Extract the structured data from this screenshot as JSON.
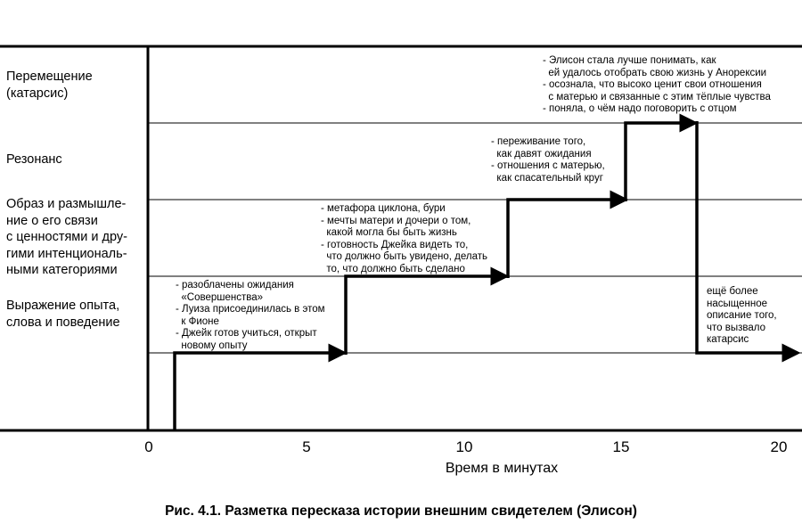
{
  "levels": [
    "Перемещение\n(катарсис)",
    "Резонанс",
    "Образ и размышле-\nние о его связи\nс ценностями и дру-\nгими интенциональ-\nными категориями",
    "Выражение опыта,\nслова и поведение"
  ],
  "notes": [
    "- разоблачены ожидания\n  «Совершенства»\n- Луиза присоединилась в этом\n  к Фионе\n- Джейк готов учиться, открыт\n  новому опыту",
    "- метафора циклона, бури\n- мечты матери и дочери о том,\n  какой могла бы быть жизнь\n- готовность Джейка видеть то,\n  что должно быть увидено, делать\n  то, что должно быть сделано",
    "- переживание того,\n  как давят ожидания\n- отношения с матерью,\n  как спасательный круг",
    "- Элисон стала лучше понимать, как\n  ей удалось отобрать свою жизнь у Анорексии\n- осознала, что высоко ценит свои отношения\n  с матерью и связанные с этим тёплые чувства\n- поняла, о чём надо поговорить с отцом",
    "ещё более\nнасыщенное\nописание того,\nчто вызвало\nкатарсис"
  ],
  "x_ticks": [
    "0",
    "5",
    "10",
    "15",
    "20"
  ],
  "x_label": "Время в минутах",
  "caption": "Рис. 4.1. Разметка пересказа истории внешним свидетелем (Элисон)"
}
